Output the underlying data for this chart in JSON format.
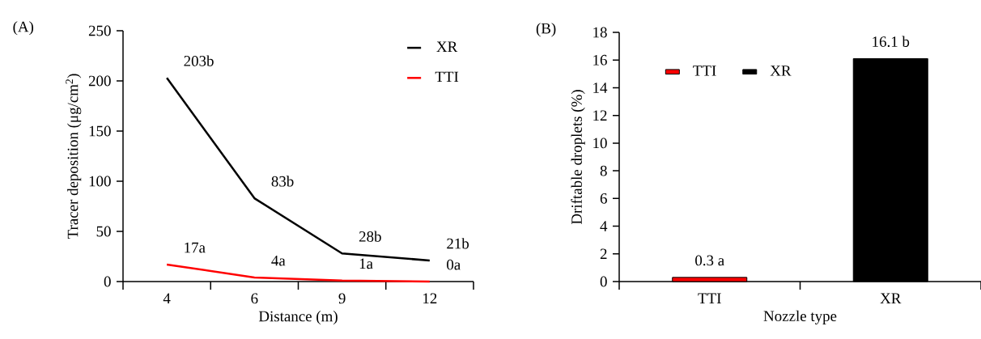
{
  "chart_data": [
    {
      "type": "line",
      "title": "(A)",
      "xlabel": "Distance (m)",
      "ylabel": "Tracer deposition (μg/cm$^{2}$)",
      "categories": [
        "4",
        "6",
        "9",
        "12"
      ],
      "series": [
        {
          "name": "XR",
          "color": "#000000",
          "values": [
            203,
            83,
            28,
            21
          ],
          "value_labels": [
            "203b",
            "83b",
            "28b",
            "21b"
          ]
        },
        {
          "name": "TTI",
          "color": "#ff0000",
          "values": [
            17,
            4,
            1,
            0
          ],
          "value_labels": [
            "17a",
            "4a",
            "1a",
            "0a"
          ]
        }
      ],
      "ylim": [
        0,
        250
      ],
      "yticks": [
        0,
        50,
        100,
        150,
        200,
        250
      ],
      "legend": "top right"
    },
    {
      "type": "bar",
      "title": "(B)",
      "xlabel": "Nozzle type",
      "ylabel": "Driftable droplets (%)",
      "categories": [
        "TTI",
        "XR"
      ],
      "series": [
        {
          "name": "TTI",
          "color": "#ff0000",
          "values": [
            0.3,
            null
          ],
          "value_labels": [
            "0.3 a",
            null
          ]
        },
        {
          "name": "XR",
          "color": "#000000",
          "values": [
            null,
            16.1
          ],
          "value_labels": [
            null,
            "16.1 b"
          ]
        }
      ],
      "ylim": [
        0,
        18
      ],
      "yticks": [
        0,
        2,
        4,
        6,
        8,
        10,
        12,
        14,
        16,
        18
      ],
      "legend": "top left"
    }
  ]
}
